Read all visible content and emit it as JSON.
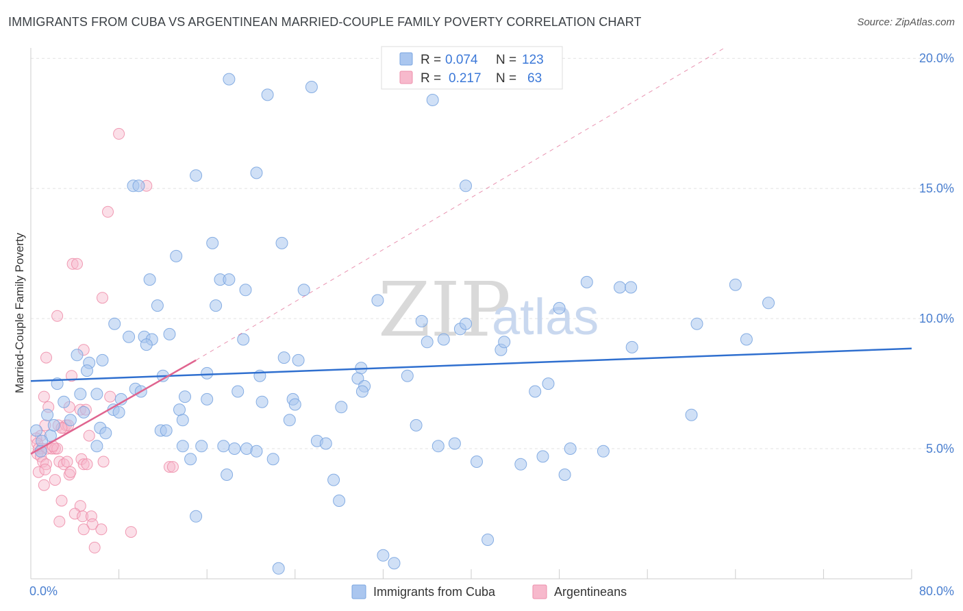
{
  "header": {
    "title": "IMMIGRANTS FROM CUBA VS ARGENTINEAN MARRIED-COUPLE FAMILY POVERTY CORRELATION CHART",
    "source": "Source: ZipAtlas.com"
  },
  "watermark": {
    "zip": "ZIP",
    "atlas": "atlas"
  },
  "legend": {
    "rows": [
      {
        "r_label": "R =",
        "r_value": "0.074",
        "n_label": "N =",
        "n_value": "123",
        "color": "#aac6ef"
      },
      {
        "r_label": "R =",
        "r_value": "0.217",
        "n_label": "N =",
        "n_value": "63",
        "color": "#f7b9cc"
      }
    ]
  },
  "bottom_legend": {
    "items": [
      {
        "label": "Immigrants from Cuba",
        "color": "#aac6ef"
      },
      {
        "label": "Argentineans",
        "color": "#f7b9cc"
      }
    ]
  },
  "chart_data": {
    "type": "scatter",
    "title": "IMMIGRANTS FROM CUBA VS ARGENTINEAN MARRIED-COUPLE FAMILY POVERTY CORRELATION CHART",
    "xlabel": "",
    "ylabel": "Married-Couple Family Poverty",
    "xlim": [
      0,
      80
    ],
    "ylim": [
      0,
      20
    ],
    "x_tick_labels": [
      "0.0%",
      "80.0%"
    ],
    "y_tick_labels": [
      "5.0%",
      "10.0%",
      "15.0%",
      "20.0%"
    ],
    "y_ticks": [
      5,
      10,
      15,
      20
    ],
    "grid": true,
    "series": [
      {
        "name": "Immigrants from Cuba",
        "color": "#aac6ef",
        "stroke": "#7aa5e0",
        "trend": {
          "x": [
            0,
            80
          ],
          "y": [
            7.6,
            8.85
          ],
          "color": "#2f6fcf",
          "style": "solid"
        },
        "points": [
          [
            18.0,
            19.2
          ],
          [
            21.5,
            18.6
          ],
          [
            25.5,
            18.9
          ],
          [
            36.5,
            18.4
          ],
          [
            9.3,
            15.1
          ],
          [
            9.8,
            15.1
          ],
          [
            15.0,
            15.5
          ],
          [
            20.5,
            15.6
          ],
          [
            39.5,
            15.1
          ],
          [
            16.5,
            12.9
          ],
          [
            22.8,
            12.9
          ],
          [
            13.2,
            12.4
          ],
          [
            10.8,
            11.5
          ],
          [
            17.2,
            11.5
          ],
          [
            18.0,
            11.5
          ],
          [
            19.5,
            11.1
          ],
          [
            24.8,
            11.1
          ],
          [
            50.5,
            11.4
          ],
          [
            53.5,
            11.2
          ],
          [
            54.5,
            11.2
          ],
          [
            64.0,
            11.3
          ],
          [
            11.5,
            10.5
          ],
          [
            16.8,
            10.5
          ],
          [
            31.5,
            10.7
          ],
          [
            48.0,
            10.4
          ],
          [
            67.0,
            10.6
          ],
          [
            7.6,
            9.8
          ],
          [
            8.9,
            9.3
          ],
          [
            10.3,
            9.3
          ],
          [
            11.0,
            9.2
          ],
          [
            12.6,
            9.4
          ],
          [
            19.3,
            9.2
          ],
          [
            35.5,
            9.9
          ],
          [
            36.0,
            9.1
          ],
          [
            37.5,
            9.2
          ],
          [
            39.0,
            9.6
          ],
          [
            39.5,
            9.8
          ],
          [
            42.7,
            8.8
          ],
          [
            43.0,
            9.1
          ],
          [
            54.6,
            8.9
          ],
          [
            60.5,
            9.8
          ],
          [
            65.0,
            9.2
          ],
          [
            4.2,
            8.6
          ],
          [
            5.3,
            8.3
          ],
          [
            6.5,
            8.4
          ],
          [
            10.5,
            9.0
          ],
          [
            23.0,
            8.5
          ],
          [
            24.3,
            8.4
          ],
          [
            30.0,
            8.1
          ],
          [
            5.1,
            8.0
          ],
          [
            12.0,
            7.8
          ],
          [
            16.0,
            7.9
          ],
          [
            20.8,
            7.8
          ],
          [
            29.7,
            7.7
          ],
          [
            34.2,
            7.8
          ],
          [
            47.0,
            7.5
          ],
          [
            30.3,
            7.4
          ],
          [
            30.1,
            7.2
          ],
          [
            2.4,
            7.5
          ],
          [
            4.5,
            7.1
          ],
          [
            6.0,
            7.1
          ],
          [
            8.2,
            6.9
          ],
          [
            9.5,
            7.3
          ],
          [
            10.0,
            7.2
          ],
          [
            14.0,
            7.0
          ],
          [
            16.0,
            6.9
          ],
          [
            18.8,
            7.2
          ],
          [
            21.0,
            6.8
          ],
          [
            23.8,
            6.9
          ],
          [
            24.0,
            6.7
          ],
          [
            28.2,
            6.6
          ],
          [
            45.8,
            7.2
          ],
          [
            1.5,
            6.3
          ],
          [
            3.0,
            6.8
          ],
          [
            4.8,
            6.4
          ],
          [
            7.5,
            6.5
          ],
          [
            8.0,
            6.4
          ],
          [
            13.5,
            6.5
          ],
          [
            13.8,
            6.1
          ],
          [
            23.5,
            6.1
          ],
          [
            35.0,
            5.9
          ],
          [
            60.0,
            6.3
          ],
          [
            1.8,
            5.5
          ],
          [
            2.1,
            5.9
          ],
          [
            3.6,
            6.1
          ],
          [
            6.3,
            5.8
          ],
          [
            6.8,
            5.6
          ],
          [
            11.8,
            5.7
          ],
          [
            12.3,
            5.7
          ],
          [
            0.5,
            5.7
          ],
          [
            1.0,
            5.3
          ],
          [
            0.9,
            4.9
          ],
          [
            6.0,
            5.1
          ],
          [
            13.8,
            5.1
          ],
          [
            15.5,
            5.1
          ],
          [
            17.5,
            5.1
          ],
          [
            18.5,
            5.0
          ],
          [
            19.6,
            5.0
          ],
          [
            20.5,
            4.9
          ],
          [
            26.0,
            5.3
          ],
          [
            26.8,
            5.2
          ],
          [
            38.5,
            5.2
          ],
          [
            37.0,
            5.1
          ],
          [
            49.0,
            5.0
          ],
          [
            52.0,
            4.9
          ],
          [
            14.5,
            4.6
          ],
          [
            22.0,
            4.6
          ],
          [
            40.5,
            4.5
          ],
          [
            44.5,
            4.4
          ],
          [
            46.5,
            4.7
          ],
          [
            17.8,
            4.0
          ],
          [
            27.5,
            3.8
          ],
          [
            48.5,
            4.0
          ],
          [
            15.0,
            2.4
          ],
          [
            28.0,
            3.0
          ],
          [
            41.5,
            1.5
          ],
          [
            32.0,
            0.9
          ],
          [
            33.0,
            0.6
          ],
          [
            22.5,
            0.4
          ]
        ]
      },
      {
        "name": "Argentineans",
        "color": "#f7b9cc",
        "stroke": "#ee8fab",
        "trend": {
          "x": [
            0,
            15
          ],
          "y": [
            4.8,
            8.4
          ],
          "color": "#e0648f",
          "style": "solid",
          "extension": {
            "x": [
              15,
              63
            ],
            "y": [
              8.4,
              20.4
            ],
            "style": "dashed"
          }
        },
        "points": [
          [
            8.0,
            17.1
          ],
          [
            10.5,
            15.1
          ],
          [
            7.0,
            14.1
          ],
          [
            3.8,
            12.1
          ],
          [
            4.2,
            12.1
          ],
          [
            6.5,
            10.8
          ],
          [
            2.4,
            10.1
          ],
          [
            1.4,
            8.5
          ],
          [
            4.8,
            8.8
          ],
          [
            3.7,
            7.8
          ],
          [
            1.2,
            7.0
          ],
          [
            7.2,
            7.0
          ],
          [
            3.5,
            6.6
          ],
          [
            4.5,
            6.5
          ],
          [
            5.0,
            6.5
          ],
          [
            1.6,
            6.6
          ],
          [
            1.3,
            5.9
          ],
          [
            2.5,
            5.9
          ],
          [
            3.0,
            5.8
          ],
          [
            3.2,
            5.9
          ],
          [
            3.4,
            5.9
          ],
          [
            2.8,
            5.8
          ],
          [
            5.3,
            5.5
          ],
          [
            0.9,
            5.5
          ],
          [
            0.5,
            5.4
          ],
          [
            0.6,
            5.2
          ],
          [
            0.7,
            5.0
          ],
          [
            1.0,
            5.0
          ],
          [
            1.5,
            5.0
          ],
          [
            1.9,
            5.0
          ],
          [
            2.2,
            5.0
          ],
          [
            2.4,
            5.0
          ],
          [
            2.0,
            5.1
          ],
          [
            0.6,
            4.8
          ],
          [
            0.9,
            4.7
          ],
          [
            1.1,
            4.5
          ],
          [
            1.4,
            4.4
          ],
          [
            2.6,
            4.5
          ],
          [
            3.0,
            4.4
          ],
          [
            3.3,
            4.5
          ],
          [
            4.6,
            4.6
          ],
          [
            4.8,
            4.4
          ],
          [
            5.1,
            4.4
          ],
          [
            6.6,
            4.5
          ],
          [
            12.6,
            4.3
          ],
          [
            12.9,
            4.3
          ],
          [
            0.7,
            4.1
          ],
          [
            1.3,
            4.2
          ],
          [
            3.5,
            4.0
          ],
          [
            3.6,
            4.1
          ],
          [
            2.2,
            3.8
          ],
          [
            1.2,
            3.6
          ],
          [
            2.8,
            3.0
          ],
          [
            4.5,
            2.8
          ],
          [
            4.0,
            2.5
          ],
          [
            4.7,
            2.4
          ],
          [
            5.5,
            2.4
          ],
          [
            2.6,
            2.2
          ],
          [
            5.6,
            2.1
          ],
          [
            4.8,
            1.9
          ],
          [
            6.4,
            1.9
          ],
          [
            9.1,
            1.8
          ],
          [
            5.8,
            1.2
          ]
        ]
      }
    ]
  }
}
